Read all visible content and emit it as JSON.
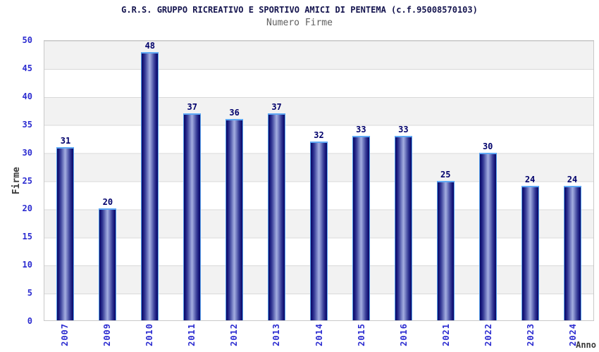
{
  "header": {
    "title": "G.R.S. GRUPPO RICREATIVO E SPORTIVO AMICI DI PENTEMA (c.f.95008570103)",
    "subtitle": "Numero Firme"
  },
  "chart_data": {
    "type": "bar",
    "title": "G.R.S. GRUPPO RICREATIVO E SPORTIVO AMICI DI PENTEMA (c.f.95008570103)",
    "subtitle": "Numero Firme",
    "categories": [
      "2007",
      "2009",
      "2010",
      "2011",
      "2012",
      "2013",
      "2014",
      "2015",
      "2016",
      "2021",
      "2022",
      "2023",
      "2024"
    ],
    "values": [
      31,
      20,
      48,
      37,
      36,
      37,
      32,
      33,
      33,
      25,
      30,
      24,
      24
    ],
    "xlabel": "Anno",
    "ylabel": "Firme",
    "ylim": [
      0,
      50
    ],
    "yticks": [
      0,
      5,
      10,
      15,
      20,
      25,
      30,
      35,
      40,
      45,
      50
    ],
    "grid": true,
    "band_fill": true,
    "legend": "none"
  },
  "colors": {
    "title_text": "#14144e",
    "subtitle_text": "#5f5f5f",
    "bar_dark": "#0c0c62",
    "bar_light": "#a4aee0",
    "bar_border": "#57a0ee",
    "value_label": "#00006b",
    "tick_label": "#2b2bd0",
    "axis_label": "#3a3a3a",
    "band_fill_color": "#f2f2f2",
    "grid_line": "#d9d9d9",
    "plot_border": "#c9c9c9",
    "background": "#ffffff"
  }
}
